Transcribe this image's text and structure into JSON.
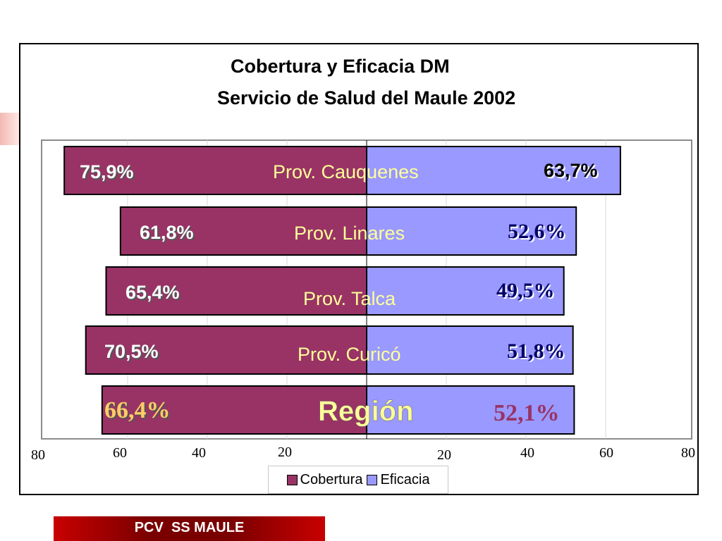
{
  "chart_data": {
    "type": "bar",
    "orientation": "horizontal-diverging",
    "title": "Cobertura y Eficacia DM",
    "subtitle": "Servicio de Salud del Maule 2002",
    "categories": [
      "Prov. Cauquenes",
      "Prov. Linares",
      "Prov. Talca",
      "Prov. Curicó",
      "Región"
    ],
    "series": [
      {
        "name": "Cobertura",
        "color": "#993366",
        "side": "left",
        "values": [
          75.9,
          61.8,
          65.4,
          70.5,
          66.4
        ],
        "labels": [
          "75,9%",
          "61,8%",
          "65,4%",
          "70,5%",
          "66,4%"
        ]
      },
      {
        "name": "Eficacia",
        "color": "#9999ff",
        "side": "right",
        "values": [
          63.7,
          52.6,
          49.5,
          51.8,
          52.1
        ],
        "labels": [
          "63,7%",
          "52,6%",
          "49,5%",
          "51,8%",
          "52,1%"
        ]
      }
    ],
    "x_ticks": [
      "80",
      "60",
      "40",
      "20",
      "20",
      "40",
      "60",
      "80"
    ],
    "xlim": [
      -80,
      80
    ],
    "grid": true,
    "legend_position": "bottom"
  },
  "footer": {
    "text": "PCV  SS MAULE"
  }
}
